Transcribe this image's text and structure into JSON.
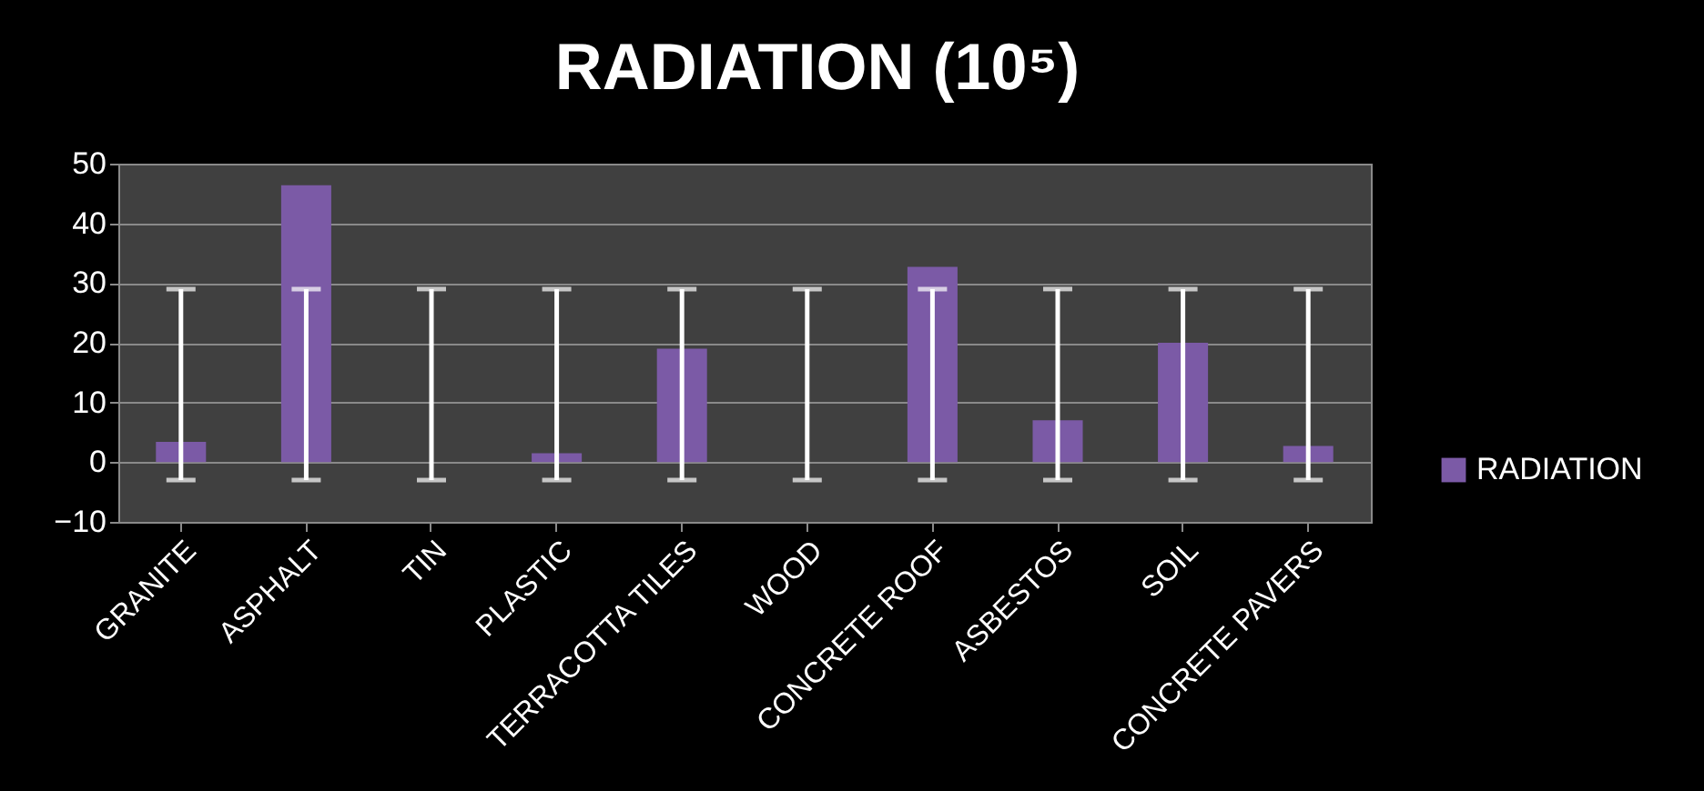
{
  "chart_data": {
    "type": "bar",
    "title": "RADIATION (10⁵)",
    "categories": [
      "GRANITE",
      "ASPHALT",
      "TIN",
      "PLASTIC",
      "TERRACOTTA TILES",
      "WOOD",
      "CONCRETE ROOF",
      "ASBESTOS",
      "SOIL",
      "CONCRETE PAVERS"
    ],
    "series": [
      {
        "name": "RADIATION",
        "color": "#7b5aa6",
        "values": [
          3.4,
          46.4,
          0,
          1.5,
          19,
          0,
          32.7,
          7,
          20,
          2.7
        ],
        "errors": [
          [
            -3,
            29
          ],
          [
            -3,
            29
          ],
          [
            -3,
            29
          ],
          [
            -3,
            29
          ],
          [
            -3,
            29
          ],
          [
            -3,
            29
          ],
          [
            -3,
            29
          ],
          [
            -3,
            29
          ],
          [
            -3,
            29
          ],
          [
            -3,
            29
          ]
        ]
      }
    ],
    "ylim": [
      -10,
      50
    ],
    "yticks": [
      -10,
      0,
      10,
      20,
      30,
      40,
      50
    ],
    "grid": "y",
    "legend": "right"
  }
}
